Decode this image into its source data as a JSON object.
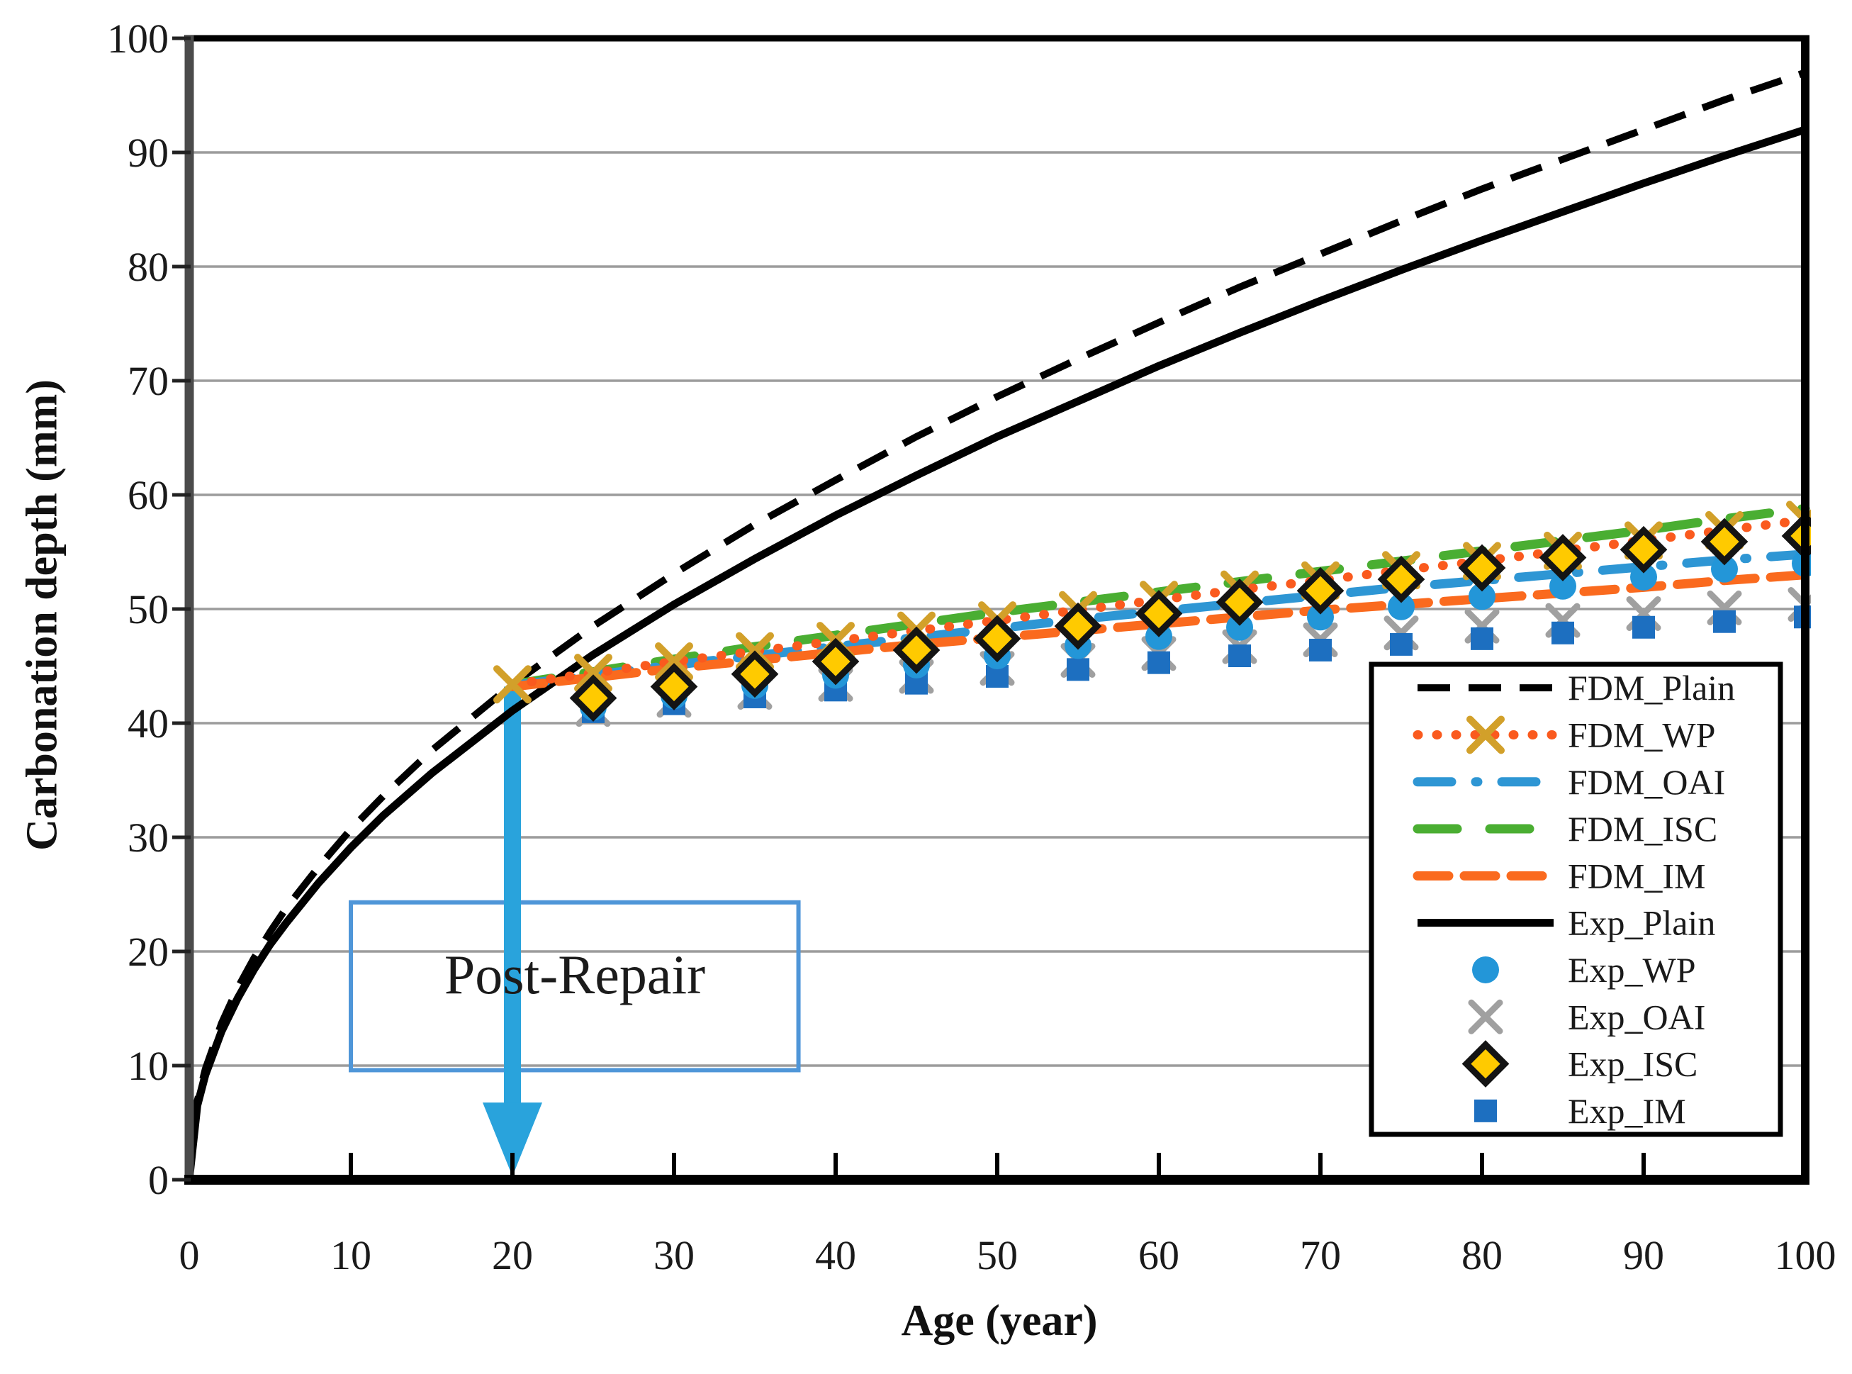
{
  "chart_data": {
    "type": "line",
    "title": "",
    "xlabel": "Age (year)",
    "ylabel": "Carbonation depth (mm)",
    "xlim": [
      0,
      100
    ],
    "ylim": [
      0,
      100
    ],
    "xticks": [
      0,
      10,
      20,
      30,
      40,
      50,
      60,
      70,
      80,
      90,
      100
    ],
    "yticks": [
      0,
      10,
      20,
      30,
      40,
      50,
      60,
      70,
      80,
      90,
      100
    ],
    "grid": {
      "axis": "y",
      "levels": [
        10,
        20,
        30,
        40,
        50,
        60,
        70,
        80,
        90
      ],
      "color": "#9c9c9c"
    },
    "annotation": {
      "text": "Post-Repair",
      "box": {
        "x0": 10,
        "x1": 37.7,
        "y0": 9.6,
        "y1": 24.3
      },
      "box_border_color": "#4f96d8",
      "arrow": {
        "x": 20,
        "y_top": 43.2,
        "y_tip": 0.3,
        "color": "#29a3dc"
      }
    },
    "legend": {
      "position": "lower right",
      "entries": [
        "FDM_Plain",
        "FDM_WP",
        "FDM_OAI",
        "FDM_ISC",
        "FDM_IM",
        "Exp_Plain",
        "Exp_WP",
        "Exp_OAI",
        "Exp_ISC",
        "Exp_IM"
      ]
    },
    "series": [
      {
        "name": "FDM_Plain",
        "kind": "line",
        "color": "#000000",
        "dash": "46 26",
        "width": 10,
        "marker": null,
        "x": [
          0,
          0.5,
          1,
          2,
          3,
          4,
          5,
          6,
          8,
          10,
          12,
          15,
          20,
          25,
          30,
          35,
          40,
          45,
          50,
          55,
          60,
          65,
          70,
          75,
          80,
          85,
          90,
          95,
          100
        ],
        "y": [
          0,
          6.9,
          9.7,
          13.7,
          16.8,
          19.4,
          21.7,
          23.8,
          27.4,
          30.7,
          33.6,
          37.6,
          43.4,
          48.5,
          53.1,
          57.4,
          61.3,
          65.1,
          68.6,
          71.9,
          75.1,
          78.2,
          81.1,
          84.0,
          86.8,
          89.4,
          92.0,
          94.6,
          97.0
        ]
      },
      {
        "name": "FDM_WP",
        "kind": "line",
        "color": "#fa5a1e",
        "dash": "1 26",
        "width": 13,
        "linecap": "round",
        "marker": {
          "shape": "x",
          "size": 22,
          "stroke": "#d2a02a",
          "stroke_width": 10
        },
        "x": [
          20,
          25,
          30,
          35,
          40,
          45,
          50,
          55,
          60,
          65,
          70,
          75,
          80,
          85,
          90,
          95,
          100
        ],
        "y": [
          43.4,
          44.4,
          45.4,
          46.3,
          47.2,
          48.1,
          49.0,
          49.9,
          50.8,
          51.7,
          52.5,
          53.4,
          54.2,
          55.1,
          56.0,
          56.9,
          57.8
        ]
      },
      {
        "name": "FDM_OAI",
        "kind": "line",
        "color": "#2e96d4",
        "dash": "48 34 3 34",
        "width": 13,
        "linecap": "round",
        "marker": null,
        "x": [
          20,
          25,
          30,
          35,
          40,
          45,
          50,
          55,
          60,
          65,
          70,
          75,
          80,
          85,
          90,
          95,
          100
        ],
        "y": [
          43.3,
          44.2,
          45.1,
          45.9,
          46.7,
          47.5,
          48.3,
          49.1,
          49.8,
          50.5,
          51.2,
          51.9,
          52.5,
          53.1,
          53.7,
          54.3,
          54.8
        ]
      },
      {
        "name": "FDM_ISC",
        "kind": "line",
        "color": "#4aae32",
        "dash": "56 46",
        "width": 13,
        "linecap": "round",
        "marker": null,
        "x": [
          20,
          25,
          30,
          35,
          40,
          45,
          50,
          55,
          60,
          65,
          70,
          75,
          80,
          85,
          90,
          95,
          100
        ],
        "y": [
          43.4,
          44.5,
          45.6,
          46.7,
          47.7,
          48.7,
          49.7,
          50.6,
          51.5,
          52.4,
          53.3,
          54.2,
          55.1,
          56.0,
          56.9,
          57.9,
          58.8
        ]
      },
      {
        "name": "FDM_IM",
        "kind": "line",
        "color": "#fa6a1e",
        "dash": "44 22",
        "width": 13,
        "linecap": "round",
        "marker": null,
        "x": [
          20,
          25,
          30,
          35,
          40,
          45,
          50,
          55,
          60,
          65,
          70,
          75,
          80,
          85,
          90,
          95,
          100
        ],
        "y": [
          43.2,
          44.0,
          44.8,
          45.5,
          46.2,
          46.9,
          47.5,
          48.1,
          48.7,
          49.3,
          49.9,
          50.4,
          50.9,
          51.4,
          51.9,
          52.5,
          53.0
        ]
      },
      {
        "name": "Exp_Plain",
        "kind": "line",
        "color": "#000000",
        "dash": null,
        "width": 11,
        "marker": null,
        "x": [
          0,
          0.5,
          1,
          2,
          3,
          4,
          5,
          6,
          8,
          10,
          12,
          15,
          20,
          25,
          30,
          35,
          40,
          45,
          50,
          55,
          60,
          65,
          70,
          75,
          80,
          85,
          90,
          95,
          100
        ],
        "y": [
          0,
          6.5,
          9.2,
          13.0,
          15.9,
          18.4,
          20.6,
          22.5,
          26.0,
          29.1,
          31.9,
          35.6,
          41.1,
          46.0,
          50.4,
          54.4,
          58.2,
          61.7,
          65.1,
          68.2,
          71.3,
          74.2,
          77.0,
          79.7,
          82.3,
          84.8,
          87.3,
          89.7,
          92.0
        ]
      },
      {
        "name": "Exp_WP",
        "kind": "scatter",
        "marker": {
          "shape": "circle",
          "size": 19,
          "fill": "#2396d8"
        },
        "x": [
          25,
          30,
          35,
          40,
          45,
          50,
          55,
          60,
          65,
          70,
          75,
          80,
          85,
          90,
          95,
          100
        ],
        "y": [
          41.4,
          42.4,
          43.3,
          44.2,
          45.1,
          45.9,
          46.8,
          47.6,
          48.4,
          49.3,
          50.2,
          51.1,
          52.0,
          52.8,
          53.5,
          54.0
        ]
      },
      {
        "name": "Exp_OAI",
        "kind": "scatter",
        "marker": {
          "shape": "x",
          "size": 20,
          "stroke": "#a0a0a0",
          "stroke_width": 9
        },
        "x": [
          25,
          30,
          35,
          40,
          45,
          50,
          55,
          60,
          65,
          70,
          75,
          80,
          85,
          90,
          95,
          100
        ],
        "y": [
          41.2,
          42.0,
          42.7,
          43.4,
          44.1,
          44.8,
          45.5,
          46.1,
          46.7,
          47.3,
          47.9,
          48.5,
          49.0,
          49.6,
          50.1,
          50.4
        ]
      },
      {
        "name": "Exp_ISC",
        "kind": "scatter",
        "marker": {
          "shape": "diamond",
          "size": 27,
          "fill": "#ffca00",
          "stroke": "#141414",
          "stroke_width": 9
        },
        "x": [
          25,
          30,
          35,
          40,
          45,
          50,
          55,
          60,
          65,
          70,
          75,
          80,
          85,
          90,
          95,
          100
        ],
        "y": [
          42.2,
          43.2,
          44.3,
          45.4,
          46.4,
          47.4,
          48.5,
          49.6,
          50.6,
          51.6,
          52.6,
          53.6,
          54.5,
          55.2,
          55.9,
          56.4
        ]
      },
      {
        "name": "Exp_IM",
        "kind": "scatter",
        "marker": {
          "shape": "square",
          "size": 16,
          "fill": "#1d6fc0"
        },
        "x": [
          25,
          30,
          35,
          40,
          45,
          50,
          55,
          60,
          65,
          70,
          75,
          80,
          85,
          90,
          95,
          100
        ],
        "y": [
          41.0,
          41.7,
          42.3,
          42.9,
          43.5,
          44.1,
          44.7,
          45.3,
          45.9,
          46.4,
          46.9,
          47.4,
          47.9,
          48.4,
          48.9,
          49.3
        ]
      }
    ]
  }
}
